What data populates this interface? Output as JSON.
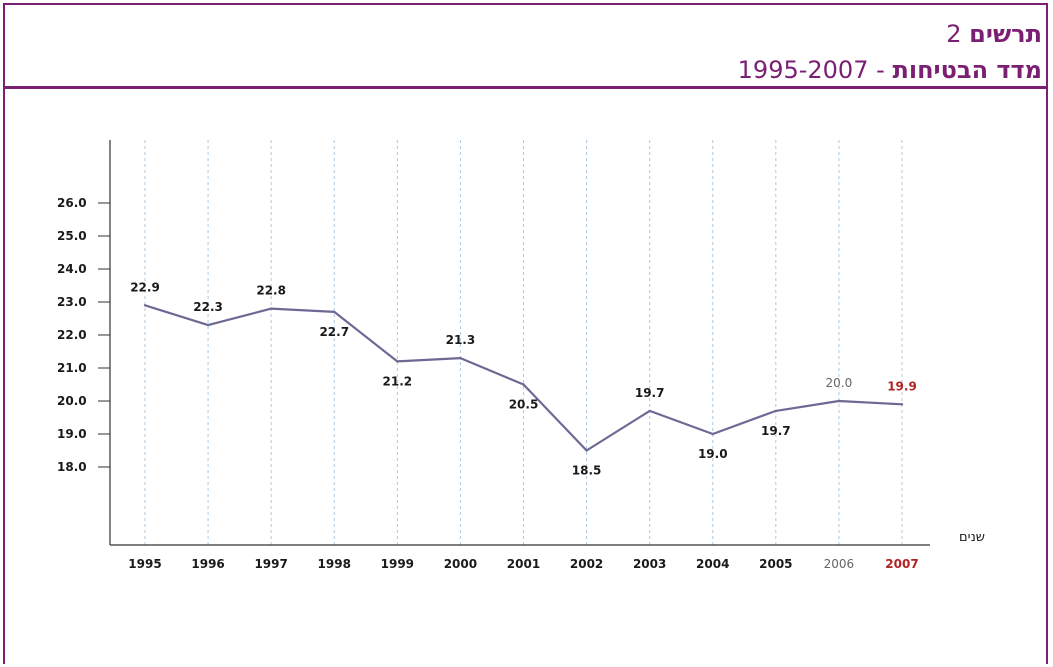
{
  "header": {
    "figure_word": "תרשים",
    "figure_number": "2",
    "title": "מדד הבטיחות",
    "separator": "-",
    "range": "1995-2007"
  },
  "chart_data": {
    "type": "line",
    "xlabel": "שנים",
    "ylabel": "",
    "x": [
      "1995",
      "1996",
      "1997",
      "1998",
      "1999",
      "2000",
      "2001",
      "2002",
      "2003",
      "2004",
      "2005",
      "2006",
      "2007"
    ],
    "series": [
      {
        "values": [
          22.9,
          22.3,
          22.8,
          22.7,
          21.2,
          21.3,
          20.5,
          18.5,
          19.7,
          19.0,
          19.7,
          20.0,
          19.9
        ]
      }
    ],
    "point_labels": [
      "22.9",
      "22.3",
      "22.8",
      "22.7",
      "21.2",
      "21.3",
      "20.5",
      "18.5",
      "19.7",
      "19.0",
      "19.7",
      "20.0",
      "19.9"
    ],
    "y_ticks": [
      "18.0",
      "19.0",
      "20.0",
      "21.0",
      "22.0",
      "23.0",
      "24.0",
      "25.0",
      "26.0"
    ],
    "ylim": [
      18,
      26
    ],
    "grid": "vertical dashed",
    "colors": {
      "line": "#6f6894",
      "grid": "#a9c9e2",
      "axis": "#333333",
      "highlight_last": "#b22222",
      "muted_2006": "#666666",
      "frame": "#7b1f73"
    }
  }
}
